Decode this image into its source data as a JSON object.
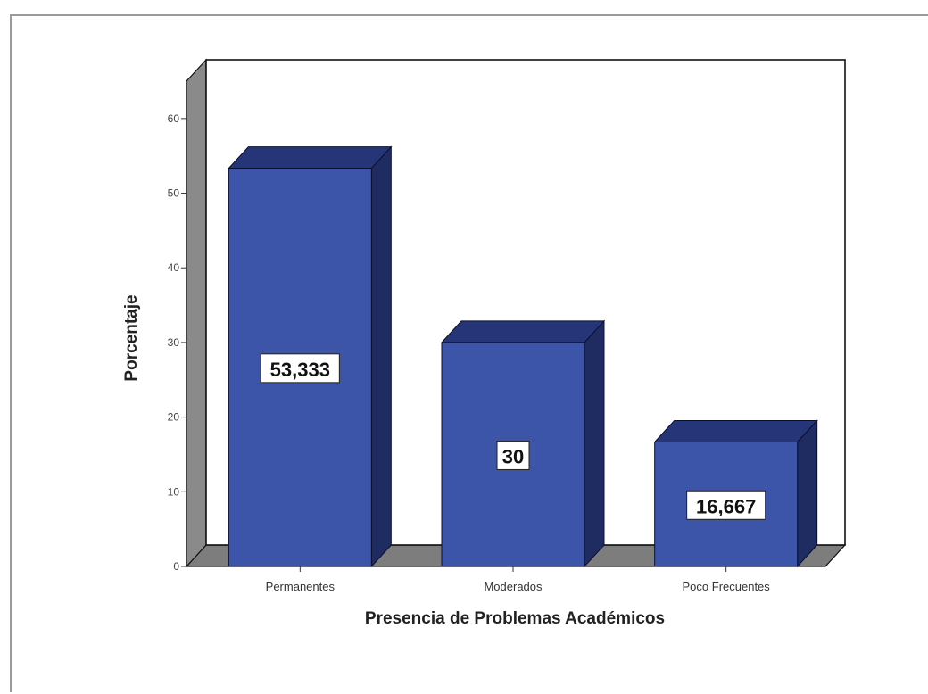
{
  "chart_data": {
    "type": "bar",
    "style": "3d",
    "title": "",
    "xlabel": "Presencia de Problemas Académicos",
    "ylabel": "Porcentaje",
    "ylim": [
      0,
      65
    ],
    "yticks": [
      0,
      10,
      20,
      30,
      40,
      50,
      60
    ],
    "grid": false,
    "categories": [
      "Permanentes",
      "Moderados",
      "Poco Frecuentes"
    ],
    "values": [
      53.333,
      30,
      16.667
    ],
    "data_labels": [
      "53,333",
      "30",
      "16,667"
    ],
    "colors": {
      "bar_front": "#3d55a8",
      "bar_top": "#253577",
      "bar_side": "#1f2c62",
      "back_wall": "#ffffff",
      "side_wall": "#8a8a8a",
      "floor": "#7d7d7d"
    }
  }
}
